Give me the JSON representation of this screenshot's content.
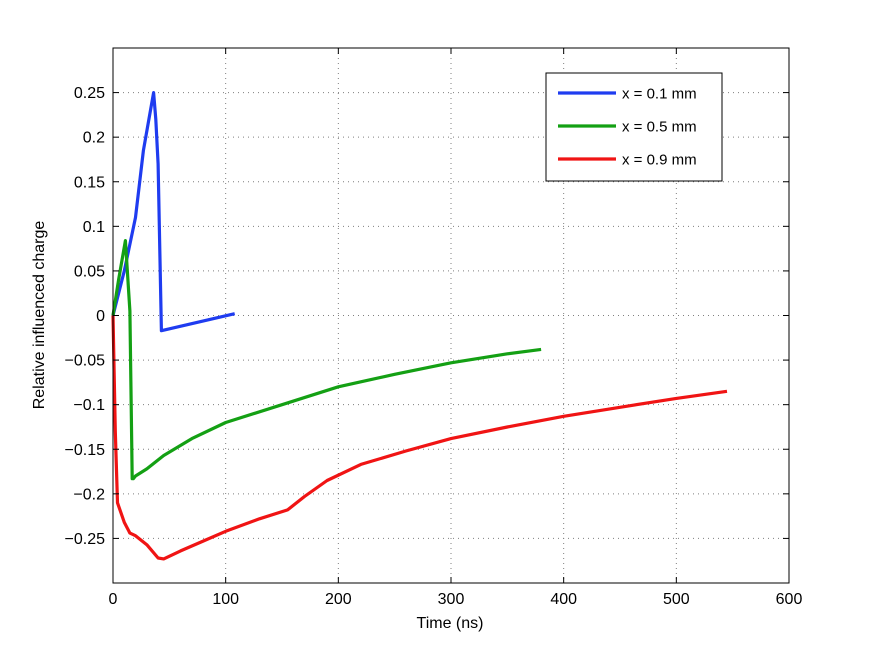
{
  "chart_data": {
    "type": "line",
    "title": "",
    "xlabel": "Time (ns)",
    "ylabel": "Relative influenced charge",
    "xlim": [
      0,
      600
    ],
    "ylim": [
      -0.3,
      0.3
    ],
    "xticks": [
      0,
      100,
      200,
      300,
      400,
      500,
      600
    ],
    "yticks": [
      -0.25,
      -0.2,
      -0.15,
      -0.1,
      -0.05,
      0,
      0.05,
      0.1,
      0.15,
      0.2,
      0.25
    ],
    "xtick_labels": [
      "0",
      "100",
      "200",
      "300",
      "400",
      "500",
      "600"
    ],
    "ytick_labels": [
      "−0.25",
      "−0.2",
      "−0.15",
      "−0.1",
      "−0.05",
      "0",
      "0.05",
      "0.1",
      "0.15",
      "0.2",
      "0.25"
    ],
    "grid": true,
    "legend_position": "top-right",
    "series": [
      {
        "name": "x = 0.1 mm",
        "color": "#1f3cf0",
        "x": [
          0,
          10,
          20,
          27,
          36,
          38,
          40,
          43,
          108
        ],
        "y": [
          0,
          0.05,
          0.11,
          0.185,
          0.25,
          0.22,
          0.17,
          -0.017,
          0.002
        ]
      },
      {
        "name": "x = 0.5 mm",
        "color": "#14a014",
        "x": [
          0,
          5,
          11,
          15,
          17,
          18,
          20,
          30,
          45,
          70,
          100,
          150,
          200,
          250,
          300,
          350,
          380
        ],
        "y": [
          0,
          0.04,
          0.084,
          0.005,
          -0.183,
          -0.183,
          -0.18,
          -0.172,
          -0.157,
          -0.138,
          -0.12,
          -0.1,
          -0.08,
          -0.066,
          -0.053,
          -0.043,
          -0.038
        ]
      },
      {
        "name": "x = 0.9 mm",
        "color": "#f01414",
        "x": [
          0,
          2,
          4,
          10,
          15,
          20,
          30,
          40,
          45,
          60,
          80,
          100,
          130,
          155,
          170,
          190,
          220,
          260,
          300,
          350,
          400,
          450,
          500,
          545
        ],
        "y": [
          0,
          -0.13,
          -0.21,
          -0.232,
          -0.244,
          -0.247,
          -0.257,
          -0.272,
          -0.273,
          -0.264,
          -0.253,
          -0.242,
          -0.228,
          -0.218,
          -0.203,
          -0.185,
          -0.167,
          -0.152,
          -0.138,
          -0.125,
          -0.113,
          -0.103,
          -0.093,
          -0.085
        ]
      }
    ]
  }
}
